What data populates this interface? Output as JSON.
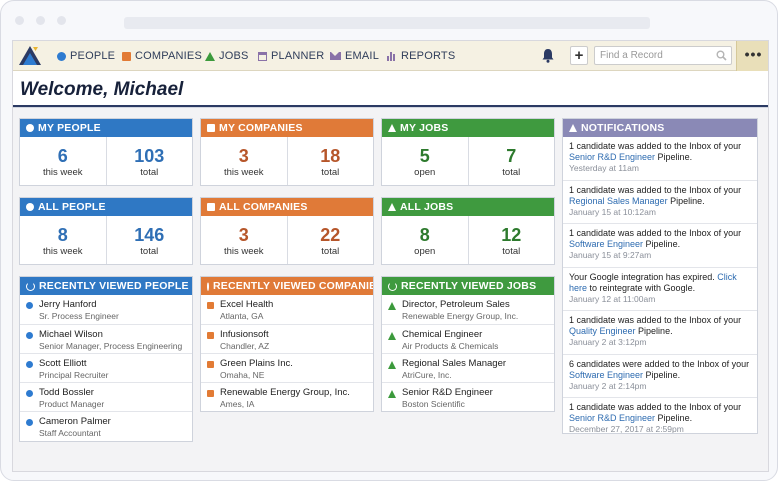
{
  "nav": {
    "items": [
      {
        "label": "PEOPLE",
        "color": "#2e7bd0"
      },
      {
        "label": "COMPANIES",
        "color": "#e27b35"
      },
      {
        "label": "JOBS",
        "color": "#3c9a3c"
      },
      {
        "label": "PLANNER",
        "color": "#8a72a8"
      },
      {
        "label": "EMAIL",
        "color": "#8a72a8"
      },
      {
        "label": "REPORTS",
        "color": "#8a72a8"
      }
    ],
    "search_placeholder": "Find a Record",
    "add_label": "+",
    "more_label": "•••"
  },
  "welcome": "Welcome, Michael",
  "colors": {
    "people": "#2f78c4",
    "companies": "#e07a38",
    "jobs": "#3f9a3f",
    "notifications": "#8a89b6",
    "people_num": "#2f6fb5",
    "companies_num": "#b6562a",
    "jobs_num": "#2d7a2d"
  },
  "stats": {
    "my_people": {
      "title": "MY PEOPLE",
      "a_num": "6",
      "a_lbl": "this week",
      "b_num": "103",
      "b_lbl": "total"
    },
    "my_companies": {
      "title": "MY COMPANIES",
      "a_num": "3",
      "a_lbl": "this week",
      "b_num": "18",
      "b_lbl": "total"
    },
    "my_jobs": {
      "title": "MY JOBS",
      "a_num": "5",
      "a_lbl": "open",
      "b_num": "7",
      "b_lbl": "total"
    },
    "all_people": {
      "title": "ALL PEOPLE",
      "a_num": "8",
      "a_lbl": "this week",
      "b_num": "146",
      "b_lbl": "total"
    },
    "all_companies": {
      "title": "ALL COMPANIES",
      "a_num": "3",
      "a_lbl": "this week",
      "b_num": "22",
      "b_lbl": "total"
    },
    "all_jobs": {
      "title": "ALL JOBS",
      "a_num": "8",
      "a_lbl": "open",
      "b_num": "12",
      "b_lbl": "total"
    }
  },
  "recent_people": {
    "title": "RECENTLY VIEWED PEOPLE",
    "items": [
      {
        "name": "Jerry Hanford",
        "sub": "Sr. Process Engineer"
      },
      {
        "name": "Michael Wilson",
        "sub": "Senior Manager, Process Engineering"
      },
      {
        "name": "Scott Elliott",
        "sub": "Principal Recruiter"
      },
      {
        "name": "Todd Bossler",
        "sub": "Product Manager"
      },
      {
        "name": "Cameron Palmer",
        "sub": "Staff Accountant"
      }
    ]
  },
  "recent_companies": {
    "title": "RECENTLY VIEWED COMPANIES",
    "items": [
      {
        "name": "Excel Health",
        "sub": "Atlanta, GA"
      },
      {
        "name": "Infusionsoft",
        "sub": "Chandler, AZ"
      },
      {
        "name": "Green Plains Inc.",
        "sub": "Omaha, NE"
      },
      {
        "name": "Renewable Energy Group, Inc.",
        "sub": "Ames, IA"
      }
    ]
  },
  "recent_jobs": {
    "title": "RECENTLY VIEWED JOBS",
    "items": [
      {
        "name": "Director, Petroleum Sales",
        "sub": "Renewable Energy Group, Inc."
      },
      {
        "name": "Chemical Engineer",
        "sub": "Air Products & Chemicals"
      },
      {
        "name": "Regional Sales Manager",
        "sub": "AtriCure, Inc."
      },
      {
        "name": "Senior R&D Engineer",
        "sub": "Boston Scientific"
      }
    ]
  },
  "notifications": {
    "title": "NOTIFICATIONS",
    "items": [
      {
        "pre": "1 candidate was added to the Inbox of your ",
        "link": "Senior R&D Engineer",
        "post": " Pipeline.",
        "date": "Yesterday at 11am"
      },
      {
        "pre": "1 candidate was added to the Inbox of your ",
        "link": "Regional Sales Manager",
        "post": " Pipeline.",
        "date": "January 15 at 10:12am"
      },
      {
        "pre": "1 candidate was added to the Inbox of your ",
        "link": "Software Engineer",
        "post": " Pipeline.",
        "date": "January 15 at 9:27am"
      },
      {
        "pre": "Your Google integration has expired. ",
        "link": "Click here",
        "post": " to reintegrate with Google.",
        "date": "January 12 at 11:00am"
      },
      {
        "pre": "1 candidate was added to the Inbox of your ",
        "link": "Quality Engineer",
        "post": " Pipeline.",
        "date": "January 2 at 3:12pm"
      },
      {
        "pre": "6 candidates were added to the Inbox of your ",
        "link": "Software Engineer",
        "post": " Pipeline.",
        "date": "January 2 at 2:14pm"
      },
      {
        "pre": "1 candidate was added to the Inbox of your ",
        "link": "Senior R&D Engineer",
        "post": " Pipeline.",
        "date": "December 27, 2017 at 2:59pm"
      }
    ]
  }
}
